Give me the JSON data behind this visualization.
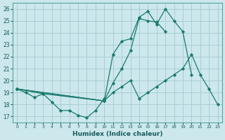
{
  "xlabel": "Humidex (Indice chaleur)",
  "background_color": "#cce8ec",
  "grid_color": "#aacdd4",
  "line_color": "#1a7a6e",
  "xlim": [
    -0.5,
    23.5
  ],
  "ylim": [
    16.5,
    26.5
  ],
  "yticks": [
    17,
    18,
    19,
    20,
    21,
    22,
    23,
    24,
    25,
    26
  ],
  "xticks": [
    0,
    1,
    2,
    3,
    4,
    5,
    6,
    7,
    8,
    9,
    10,
    11,
    12,
    13,
    14,
    15,
    16,
    17,
    18,
    19,
    20,
    21,
    22,
    23
  ],
  "series_xy": [
    [
      [
        0,
        19.3
      ],
      [
        1,
        19.0
      ],
      [
        2,
        18.6
      ],
      [
        3,
        18.9
      ],
      [
        4,
        18.2
      ],
      [
        5,
        17.5
      ],
      [
        6,
        17.5
      ],
      [
        7,
        17.1
      ],
      [
        8,
        16.9
      ],
      [
        9,
        17.5
      ],
      [
        10,
        18.5
      ]
    ],
    [
      [
        0,
        19.3
      ],
      [
        3,
        18.9
      ],
      [
        10,
        18.3
      ],
      [
        11,
        19.0
      ],
      [
        12,
        19.5
      ],
      [
        13,
        20.0
      ],
      [
        14,
        18.5
      ],
      [
        15,
        19.0
      ],
      [
        16,
        19.5
      ],
      [
        17,
        20.0
      ],
      [
        18,
        20.5
      ],
      [
        19,
        21.0
      ],
      [
        20,
        22.2
      ],
      [
        21,
        20.5
      ],
      [
        22,
        19.3
      ],
      [
        23,
        18.0
      ]
    ],
    [
      [
        0,
        19.3
      ],
      [
        10,
        18.3
      ],
      [
        11,
        19.8
      ],
      [
        12,
        21.0
      ],
      [
        13,
        22.5
      ],
      [
        14,
        25.2
      ],
      [
        15,
        25.0
      ],
      [
        16,
        24.9
      ],
      [
        17,
        24.1
      ]
    ],
    [
      [
        0,
        19.3
      ],
      [
        10,
        18.3
      ],
      [
        11,
        22.2
      ],
      [
        12,
        23.3
      ],
      [
        13,
        23.5
      ],
      [
        14,
        25.3
      ],
      [
        15,
        25.8
      ],
      [
        16,
        24.7
      ],
      [
        17,
        26.0
      ],
      [
        18,
        25.0
      ],
      [
        19,
        24.1
      ],
      [
        20,
        20.5
      ]
    ]
  ]
}
